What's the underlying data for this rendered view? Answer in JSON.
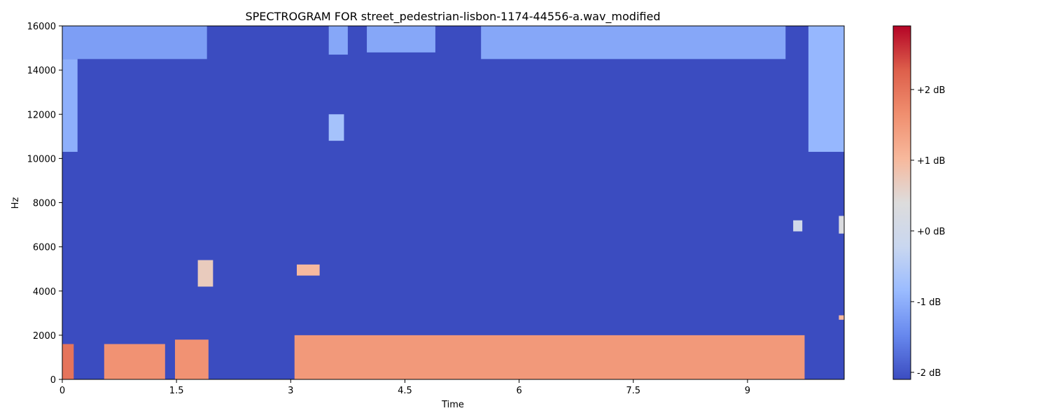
{
  "chart_data": {
    "type": "heatmap",
    "title": "SPECTROGRAM FOR street_pedestrian-lisbon-1174-44556-a.wav_modified",
    "xlabel": "Time",
    "ylabel": "Hz",
    "xlim": [
      0,
      10.27
    ],
    "ylim": [
      0,
      16000
    ],
    "xticks": [
      {
        "value": 0,
        "label": "0"
      },
      {
        "value": 1.5,
        "label": "1.5"
      },
      {
        "value": 3,
        "label": "3"
      },
      {
        "value": 4.5,
        "label": "4.5"
      },
      {
        "value": 6,
        "label": "6"
      },
      {
        "value": 7.5,
        "label": "7.5"
      },
      {
        "value": 9,
        "label": "9"
      }
    ],
    "yticks": [
      {
        "value": 0,
        "label": "0"
      },
      {
        "value": 2000,
        "label": "2000"
      },
      {
        "value": 4000,
        "label": "4000"
      },
      {
        "value": 6000,
        "label": "6000"
      },
      {
        "value": 8000,
        "label": "8000"
      },
      {
        "value": 10000,
        "label": "10000"
      },
      {
        "value": 12000,
        "label": "12000"
      },
      {
        "value": 14000,
        "label": "14000"
      },
      {
        "value": 16000,
        "label": "16000"
      }
    ],
    "colormap": "coolwarm",
    "colorbar": {
      "range": [
        -2.1,
        2.9
      ],
      "colors": [
        "#3b4cc0",
        "#6788ee",
        "#9abbff",
        "#c9d7f0",
        "#dddcdc",
        "#f7b89c",
        "#f08f6f",
        "#dd5f4b",
        "#b40426"
      ],
      "ticks": [
        {
          "value": -2,
          "label": "-2 dB"
        },
        {
          "value": -1,
          "label": "-1 dB"
        },
        {
          "value": 0,
          "label": "+0 dB"
        },
        {
          "value": 1,
          "label": "+1 dB"
        },
        {
          "value": 2,
          "label": "+2 dB"
        }
      ]
    },
    "background_db": -2.1,
    "regions": [
      {
        "t": [
          0.0,
          1.9
        ],
        "f": [
          14500,
          16100
        ],
        "db": -1.2
      },
      {
        "t": [
          0.0,
          0.2
        ],
        "f": [
          10300,
          14500
        ],
        "db": -1.0
      },
      {
        "t": [
          3.5,
          3.75
        ],
        "f": [
          14700,
          16100
        ],
        "db": -1.1
      },
      {
        "t": [
          4.0,
          4.9
        ],
        "f": [
          14800,
          16100
        ],
        "db": -1.1
      },
      {
        "t": [
          5.5,
          9.5
        ],
        "f": [
          14500,
          16100
        ],
        "db": -1.1
      },
      {
        "t": [
          9.8,
          10.27
        ],
        "f": [
          10300,
          16100
        ],
        "db": -0.9
      },
      {
        "t": [
          3.5,
          3.7
        ],
        "f": [
          10800,
          12000
        ],
        "db": -0.7
      },
      {
        "t": [
          1.78,
          1.98
        ],
        "f": [
          4200,
          5400
        ],
        "db": 0.7
      },
      {
        "t": [
          3.08,
          3.38
        ],
        "f": [
          4700,
          5200
        ],
        "db": 1.0
      },
      {
        "t": [
          9.6,
          9.72
        ],
        "f": [
          6700,
          7200
        ],
        "db": 0.0
      },
      {
        "t": [
          10.2,
          10.27
        ],
        "f": [
          6600,
          7400
        ],
        "db": 0.3
      },
      {
        "t": [
          10.2,
          10.27
        ],
        "f": [
          2700,
          2900
        ],
        "db": 1.0
      },
      {
        "t": [
          0.0,
          0.15
        ],
        "f": [
          0,
          1600
        ],
        "db": 2.0
      },
      {
        "t": [
          0.55,
          1.35
        ],
        "f": [
          0,
          1600
        ],
        "db": 1.6
      },
      {
        "t": [
          1.48,
          1.92
        ],
        "f": [
          0,
          1800
        ],
        "db": 1.6
      },
      {
        "t": [
          3.05,
          9.75
        ],
        "f": [
          0,
          2000
        ],
        "db": 1.5
      }
    ]
  }
}
